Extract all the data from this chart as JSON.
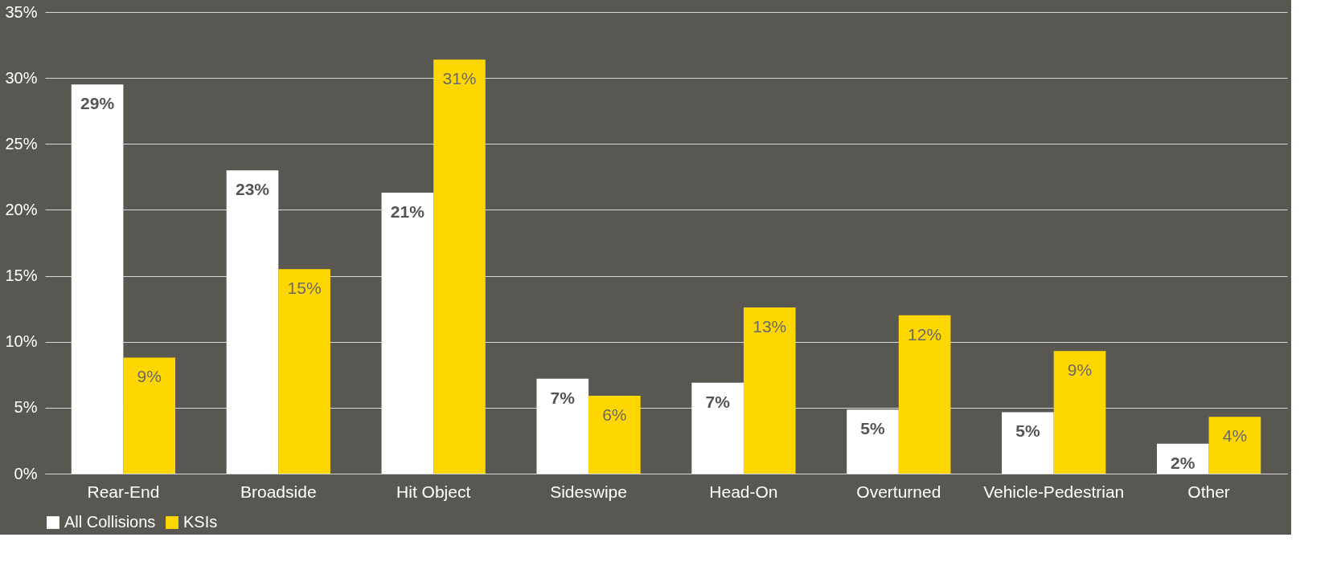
{
  "chart_data": {
    "type": "bar",
    "categories": [
      "Rear-End",
      "Broadside",
      "Hit Object",
      "Sideswipe",
      "Head-On",
      "Overturned",
      "Vehicle-Pedestrian",
      "Other"
    ],
    "series": [
      {
        "name": "All Collisions",
        "color": "#ffffff",
        "values": [
          29.5,
          23.0,
          21.3,
          7.2,
          6.9,
          4.85,
          4.66,
          2.26
        ],
        "value_labels": [
          "29%",
          "23%",
          "21%",
          "7%",
          "7%",
          "5%",
          "5%",
          "2%"
        ]
      },
      {
        "name": "KSIs",
        "color": "#ffd700",
        "values": [
          8.8,
          15.5,
          31.4,
          5.9,
          12.6,
          12.0,
          9.3,
          4.3
        ],
        "value_labels": [
          "9%",
          "15%",
          "31%",
          "6%",
          "13%",
          "12%",
          "9%",
          "4%"
        ]
      }
    ],
    "ylim": [
      0,
      35
    ],
    "yticks": [
      {
        "value": 0,
        "label": "0%"
      },
      {
        "value": 5,
        "label": "5%"
      },
      {
        "value": 10,
        "label": "10%"
      },
      {
        "value": 15,
        "label": "15%"
      },
      {
        "value": 20,
        "label": "20%"
      },
      {
        "value": 25,
        "label": "25%"
      },
      {
        "value": 30,
        "label": "30%"
      },
      {
        "value": 35,
        "label": "35%"
      }
    ],
    "grid": "y",
    "legend": "bottom"
  }
}
